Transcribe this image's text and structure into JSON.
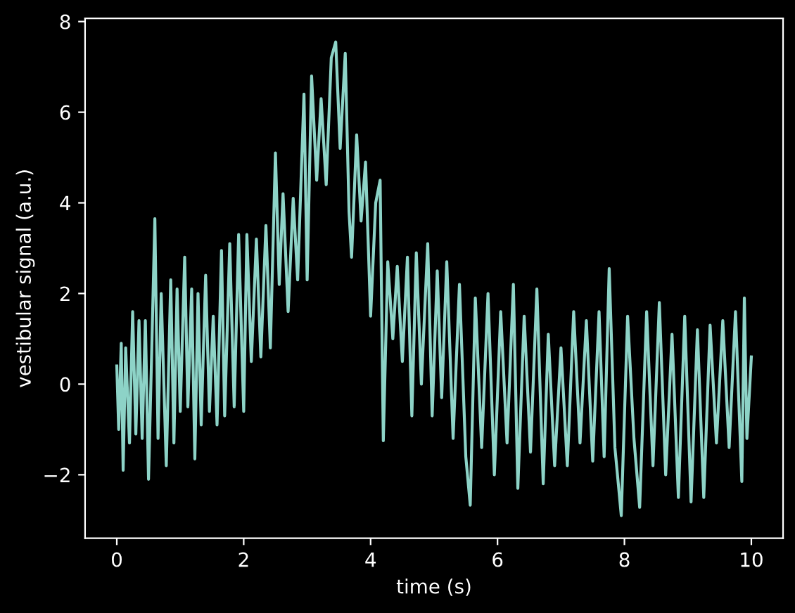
{
  "chart_data": {
    "type": "line",
    "xlabel": "time (s)",
    "ylabel": "vestibular signal (a.u.)",
    "xlim": [
      -0.5,
      10.5
    ],
    "ylim": [
      -3.4,
      8.07
    ],
    "xticks": [
      0,
      2,
      4,
      6,
      8,
      10
    ],
    "yticks": [
      {
        "value": -2,
        "label": "−2"
      },
      0,
      2,
      4,
      6,
      8
    ],
    "grid": false,
    "marker": "none",
    "line_style": "solid",
    "series": [
      {
        "color": "#8dd3c7",
        "x": [
          0,
          0.03,
          0.07,
          0.1,
          0.14,
          0.2,
          0.25,
          0.3,
          0.35,
          0.4,
          0.45,
          0.5,
          0.55,
          0.6,
          0.65,
          0.7,
          0.78,
          0.85,
          0.9,
          0.95,
          1.0,
          1.07,
          1.12,
          1.18,
          1.23,
          1.28,
          1.33,
          1.4,
          1.46,
          1.52,
          1.58,
          1.65,
          1.7,
          1.78,
          1.85,
          1.92,
          2.0,
          2.05,
          2.12,
          2.2,
          2.27,
          2.35,
          2.42,
          2.5,
          2.56,
          2.62,
          2.7,
          2.78,
          2.85,
          2.95,
          3.0,
          3.07,
          3.15,
          3.22,
          3.3,
          3.38,
          3.45,
          3.52,
          3.6,
          3.66,
          3.7,
          3.78,
          3.85,
          3.92,
          4.0,
          4.08,
          4.15,
          4.2,
          4.27,
          4.35,
          4.42,
          4.5,
          4.58,
          4.65,
          4.72,
          4.8,
          4.9,
          4.97,
          5.05,
          5.12,
          5.2,
          5.3,
          5.4,
          5.5,
          5.57,
          5.65,
          5.75,
          5.85,
          5.95,
          6.05,
          6.15,
          6.25,
          6.32,
          6.42,
          6.52,
          6.62,
          6.72,
          6.8,
          6.9,
          7.0,
          7.1,
          7.2,
          7.3,
          7.4,
          7.5,
          7.6,
          7.68,
          7.76,
          7.85,
          7.95,
          8.05,
          8.15,
          8.24,
          8.35,
          8.45,
          8.55,
          8.65,
          8.75,
          8.85,
          8.95,
          9.05,
          9.15,
          9.25,
          9.35,
          9.45,
          9.55,
          9.65,
          9.75,
          9.85,
          9.89,
          9.93,
          10.0
        ],
        "values": [
          0.4,
          -1.0,
          0.9,
          -1.9,
          0.8,
          -1.3,
          1.6,
          -1.1,
          1.4,
          -1.2,
          1.4,
          -2.1,
          0.7,
          3.65,
          -1.2,
          2.0,
          -1.8,
          2.3,
          -1.3,
          2.1,
          -0.6,
          2.8,
          -0.5,
          2.1,
          -1.65,
          2.0,
          -0.9,
          2.4,
          -0.6,
          1.5,
          -0.9,
          2.95,
          -0.7,
          3.1,
          -0.5,
          3.3,
          -0.6,
          3.3,
          0.5,
          3.2,
          0.6,
          3.5,
          0.8,
          5.1,
          2.2,
          4.2,
          1.6,
          4.1,
          2.3,
          6.4,
          2.3,
          6.8,
          4.5,
          6.3,
          4.4,
          7.2,
          7.55,
          5.2,
          7.3,
          3.8,
          2.8,
          5.5,
          3.6,
          4.9,
          1.5,
          4.0,
          4.5,
          -1.25,
          2.7,
          1.0,
          2.6,
          0.5,
          2.8,
          -0.7,
          2.9,
          0.0,
          3.1,
          -0.7,
          2.5,
          -0.3,
          2.7,
          -1.2,
          2.2,
          -1.6,
          -2.67,
          1.9,
          -1.4,
          2.0,
          -2.0,
          1.6,
          -1.3,
          2.2,
          -2.3,
          1.5,
          -1.5,
          2.1,
          -2.2,
          1.1,
          -1.8,
          0.8,
          -1.8,
          1.6,
          -1.3,
          1.4,
          -1.7,
          1.6,
          -1.6,
          2.55,
          -1.4,
          -2.9,
          1.5,
          -1.2,
          -2.72,
          1.6,
          -1.8,
          1.8,
          -2.0,
          1.1,
          -2.5,
          1.5,
          -2.6,
          1.2,
          -2.5,
          1.3,
          -1.3,
          1.4,
          -1.4,
          1.6,
          -2.15,
          1.9,
          -1.2,
          0.6
        ]
      }
    ]
  }
}
